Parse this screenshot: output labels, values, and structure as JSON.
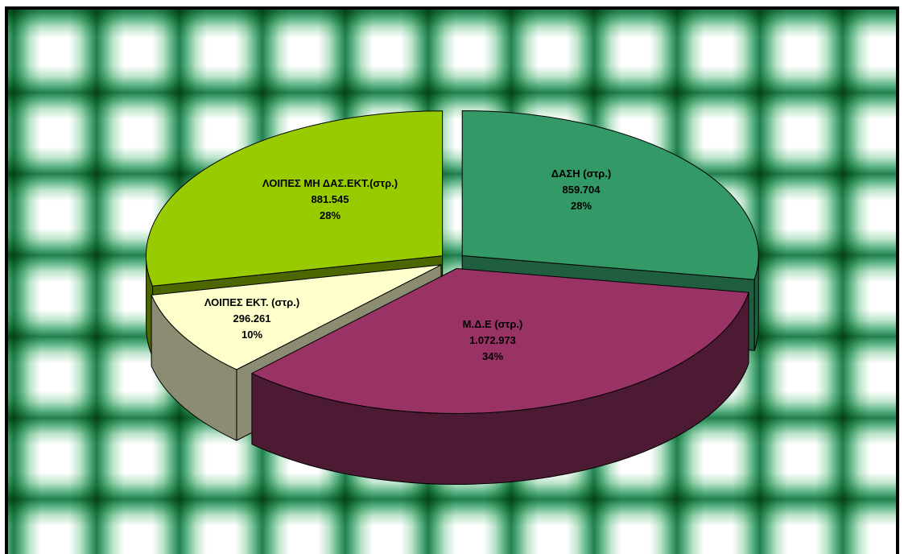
{
  "chart_data": {
    "type": "pie",
    "three_d": true,
    "exploded": true,
    "categories": [
      "ΔΑΣΗ (στρ.)",
      "Μ.Δ.Ε (στρ.)",
      "ΛΟΙΠΕΣ ΕΚΤ. (στρ.)",
      "ΛΟΙΠΕΣ ΜΗ ΔΑΣ.ΕΚΤ.(στρ.)"
    ],
    "values": [
      859704,
      1072973,
      296261,
      881545
    ],
    "value_labels": [
      "859.704",
      "1.072.973",
      "296.261",
      "881.545"
    ],
    "percent_labels": [
      "28%",
      "34%",
      "10%",
      "28%"
    ],
    "colors": [
      "#339966",
      "#993366",
      "#ffffcc",
      "#99cc00"
    ],
    "side_colors": [
      "#1f5e3e",
      "#4c1a33",
      "#8c8c73",
      "#4c6600"
    ],
    "outline_color": "#000000",
    "label_color": "#000000"
  }
}
